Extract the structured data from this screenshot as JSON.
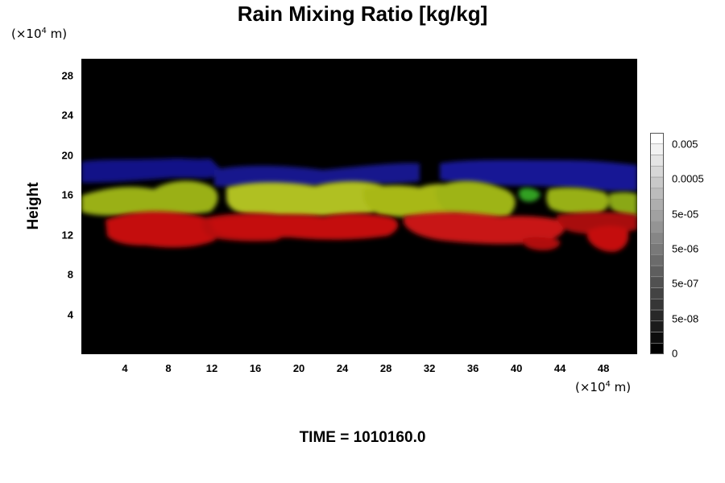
{
  "chart_data": {
    "type": "heatmap",
    "title": "Rain Mixing Ratio [kg/kg]",
    "ylabel": "Height",
    "y_unit": "(×10",
    "y_unit_exp": "4",
    "y_unit_tail": " m)",
    "x_unit": "(×10",
    "x_unit_exp": "4",
    "x_unit_tail": " m)",
    "xlim": [
      0,
      51.1
    ],
    "ylim": [
      0,
      29.7
    ],
    "x_ticks": [
      "4",
      "8",
      "12",
      "16",
      "20",
      "24",
      "28",
      "32",
      "36",
      "40",
      "44",
      "48"
    ],
    "y_ticks": [
      "4",
      "8",
      "12",
      "16",
      "20",
      "24",
      "28"
    ],
    "colorbar": {
      "labels": [
        "0.005",
        "0.0005",
        "5e-05",
        "5e-06",
        "5e-07",
        "5e-08",
        "0"
      ],
      "levels": 20,
      "colors": [
        "#000000",
        "#ffffff"
      ]
    },
    "layers": [
      {
        "color": "#1a1aa6",
        "y_range": [
          16.5,
          19.8
        ]
      },
      {
        "color": "#a8b818",
        "y_range": [
          13.5,
          17.3
        ]
      },
      {
        "color": "#c41010",
        "y_range": [
          10.5,
          14.7
        ]
      }
    ],
    "footer": "TIME = 1010160.0"
  }
}
